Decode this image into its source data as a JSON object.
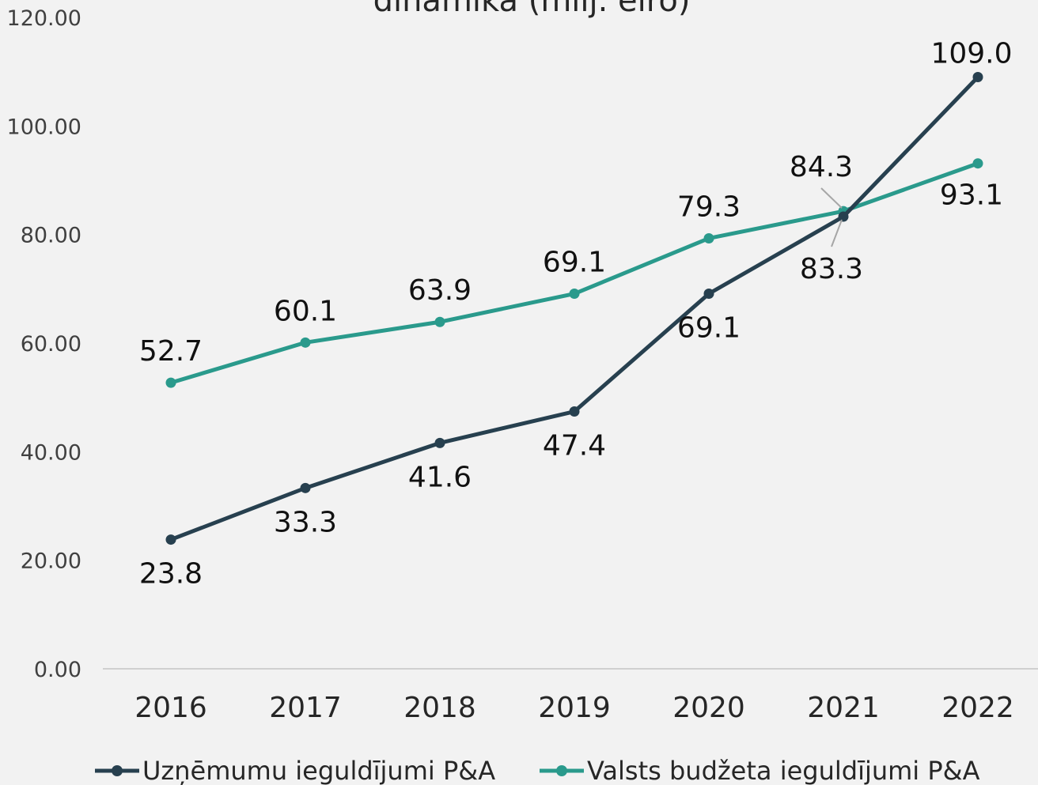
{
  "chart_data": {
    "type": "line",
    "title": "dinamika (milj. eiro)",
    "categories": [
      "2016",
      "2017",
      "2018",
      "2019",
      "2020",
      "2021",
      "2022"
    ],
    "y_ticks": [
      "0.00",
      "20.00",
      "40.00",
      "60.00",
      "80.00",
      "100.00",
      "120.00"
    ],
    "ylim": [
      0,
      120
    ],
    "grid": false,
    "legend_position": "bottom",
    "series": [
      {
        "name": "Uzņēmumu ieguldījumi P&A",
        "color": "#27404f",
        "values": [
          23.8,
          33.3,
          41.6,
          47.4,
          69.1,
          83.3,
          109.0
        ],
        "labels": [
          "23.8",
          "33.3",
          "41.6",
          "47.4",
          "69.1",
          "83.3",
          "109.0"
        ]
      },
      {
        "name": "Valsts budžeta ieguldījumi P&A",
        "color": "#2a9a8c",
        "values": [
          52.7,
          60.1,
          63.9,
          69.1,
          79.3,
          84.3,
          93.1
        ],
        "labels": [
          "52.7",
          "60.1",
          "63.9",
          "69.1",
          "79.3",
          "84.3",
          "93.1"
        ]
      }
    ]
  }
}
